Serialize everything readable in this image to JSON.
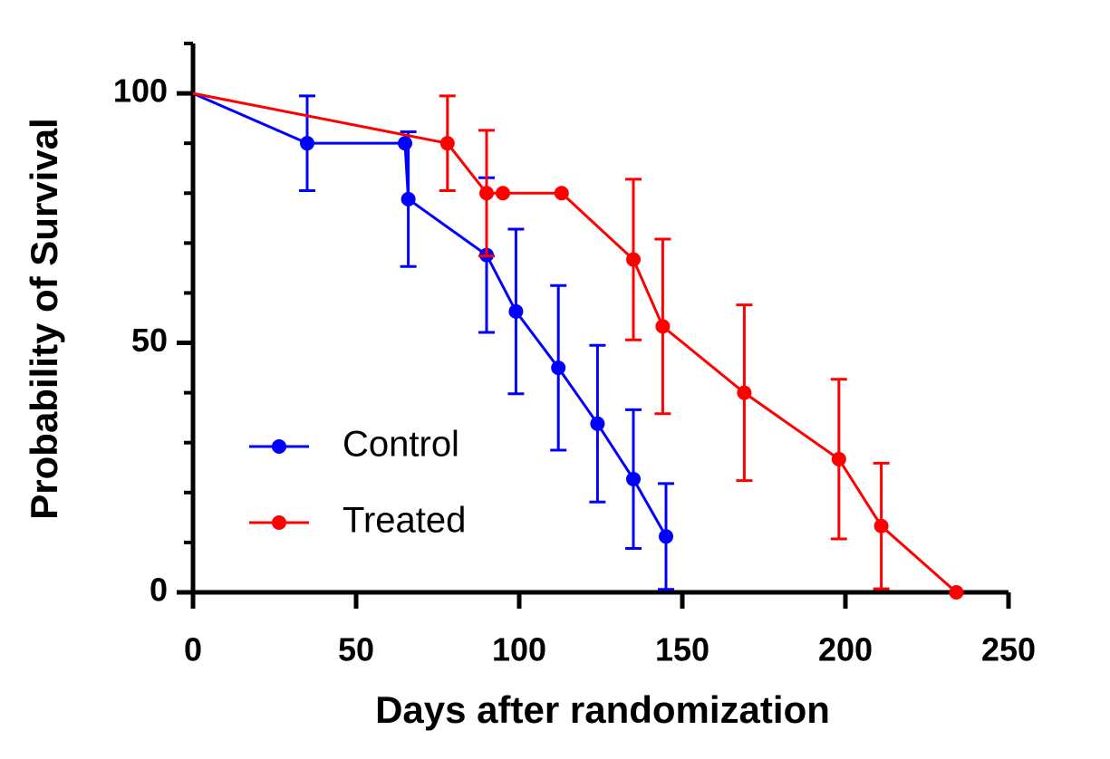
{
  "chart_data": {
    "type": "line",
    "xlabel": "Days after randomization",
    "ylabel": "Probability of Survival",
    "xlim": [
      0,
      250
    ],
    "xticks": [
      0,
      50,
      100,
      150,
      200,
      250
    ],
    "ylim": [
      0,
      110
    ],
    "yticks": [
      0,
      50,
      100
    ],
    "yminorticks": [
      10,
      20,
      30,
      40,
      60,
      70,
      80,
      90,
      110
    ],
    "legend": "lower left",
    "series": [
      {
        "name": "Control",
        "color": "#0000ff",
        "x": [
          0,
          35,
          65,
          66,
          90,
          99,
          112,
          124,
          135,
          145
        ],
        "values": [
          100,
          90,
          90,
          78.8,
          67.6,
          56.3,
          45,
          33.8,
          22.7,
          11.2
        ],
        "error": [
          null,
          9.5,
          null,
          13.5,
          15.5,
          16.5,
          16.5,
          15.7,
          13.9,
          10.6
        ]
      },
      {
        "name": "Treated",
        "color": "#ff0000",
        "x": [
          0,
          78,
          90,
          95,
          113,
          135,
          144,
          169,
          198,
          211,
          234
        ],
        "values": [
          100,
          90,
          80,
          80,
          80,
          66.7,
          53.3,
          40,
          26.7,
          13.3,
          0
        ],
        "error": [
          null,
          9.5,
          12.6,
          null,
          null,
          16.1,
          17.5,
          17.6,
          16,
          12.6,
          null
        ]
      }
    ]
  }
}
